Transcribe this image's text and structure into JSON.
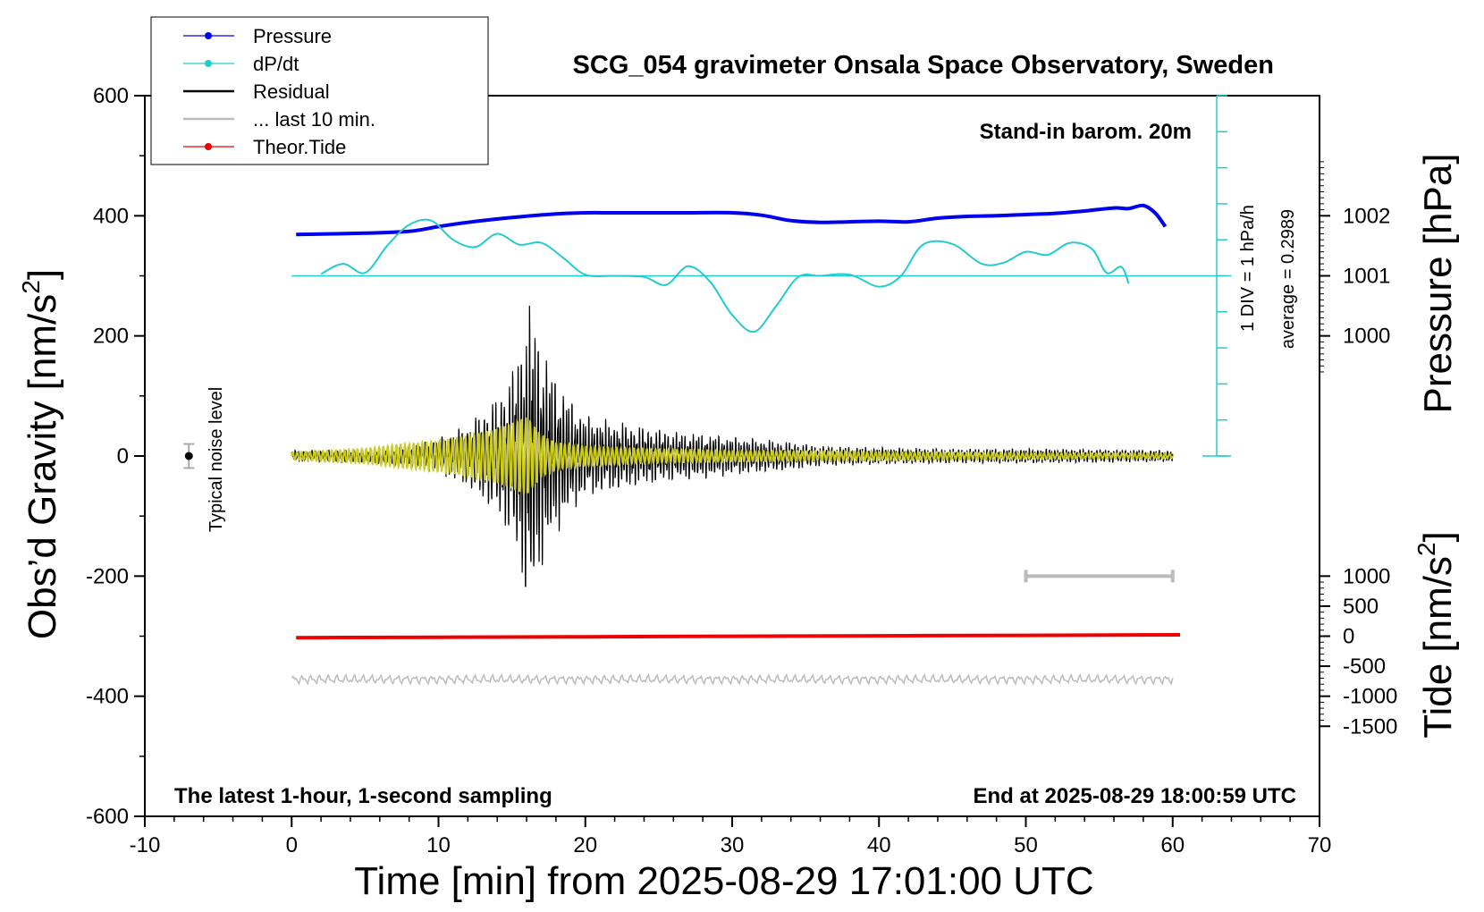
{
  "chart_data": {
    "type": "line",
    "title": "SCG_054 gravimeter Onsala Space Observatory, Sweden",
    "xlabel": "Time [min] from 2025-08-29 17:01:00 UTC",
    "ylabel_left": "Obs’d Gravity [nm/s",
    "ylabel_left_sup": "2",
    "ylabel_left_end": "]",
    "ylabel_right_pressure": "Pressure [hPa]",
    "ylabel_right_tide": "Tide [nm/s",
    "ylabel_right_tide_sup": "2",
    "ylabel_right_tide_end": "]",
    "xlim": [
      -10,
      70
    ],
    "ylim": [
      -600,
      600
    ],
    "x_ticks": [
      -10,
      0,
      10,
      20,
      30,
      40,
      50,
      60,
      70
    ],
    "x_tick_labels": [
      "-10",
      "0",
      "10",
      "20",
      "30",
      "40",
      "50",
      "60",
      "70"
    ],
    "y_ticks": [
      -600,
      -400,
      -200,
      0,
      200,
      400,
      600
    ],
    "y_tick_labels": [
      "-600",
      "-400",
      "-200",
      "0",
      "200",
      "400",
      "600"
    ],
    "pressure_ticks": [
      1000,
      1001,
      1002
    ],
    "pressure_tick_labels": [
      "1000",
      "1001",
      "1002"
    ],
    "tide_ticks": [
      -1500,
      -1000,
      -500,
      0,
      500,
      1000
    ],
    "tide_tick_labels": [
      "-1500",
      "-1000",
      "-500",
      "0",
      "500",
      "1000"
    ],
    "legend": [
      {
        "label": "Pressure",
        "color": "#0000ee",
        "marker": true
      },
      {
        "label": "dP/dt",
        "color": "#22cccc",
        "marker": true
      },
      {
        "label": "Residual",
        "color": "#000000",
        "marker": false
      },
      {
        "label": "... last 10 min.",
        "color": "#bbbbbb",
        "marker": false
      },
      {
        "label": "Theor.Tide",
        "color": "#ee0000",
        "marker": true
      }
    ],
    "annotations": {
      "barometer": "Stand-in barom. 20m",
      "div_scale": "1 DIV = 1 hPa/h",
      "average": "average = 0.2989",
      "noise": "Typical noise level",
      "sampling": "The latest 1-hour, 1-second sampling",
      "end_time": "End at 2025-08-29 18:00:59 UTC"
    },
    "series": [
      {
        "name": "Pressure",
        "color": "#0000ee",
        "x": [
          0.3,
          5,
          8,
          10,
          12,
          15,
          18,
          20,
          22,
          25,
          27,
          30,
          32,
          34,
          36,
          38,
          40,
          42,
          44,
          46,
          48,
          50,
          52,
          54,
          56,
          57,
          58,
          58.8,
          59.5
        ],
        "values": [
          369,
          371,
          374,
          382,
          389,
          397,
          403,
          405,
          405,
          405,
          405,
          405,
          401,
          392,
          389,
          390,
          391,
          390,
          396,
          399,
          400,
          402,
          404,
          408,
          413,
          412,
          417,
          405,
          382
        ]
      },
      {
        "name": "dP/dt",
        "color": "#22cccc",
        "x": [
          2,
          3.5,
          5,
          6.5,
          8,
          9.5,
          11,
          12.5,
          14,
          15.5,
          17,
          18.5,
          20,
          22,
          24,
          25.5,
          27,
          28.5,
          30,
          31.5,
          33,
          34.5,
          36,
          38,
          40,
          41.5,
          43,
          45,
          47,
          48.5,
          50,
          51.5,
          53,
          54.5,
          55.5,
          56.5,
          57
        ],
        "values": [
          303,
          320,
          305,
          350,
          385,
          392,
          360,
          348,
          370,
          352,
          355,
          330,
          302,
          300,
          298,
          285,
          316,
          290,
          235,
          207,
          250,
          298,
          300,
          302,
          282,
          300,
          352,
          353,
          320,
          322,
          340,
          335,
          355,
          345,
          305,
          315,
          287
        ]
      },
      {
        "name": "Theor.Tide",
        "color": "#ee0000",
        "x": [
          0.3,
          10,
          20,
          30,
          40,
          50,
          60.5
        ],
        "tide_values": [
          -25,
          -18,
          -10,
          -2,
          6,
          14,
          22
        ]
      }
    ],
    "residual_envelope": {
      "x": [
        0,
        5,
        8,
        10,
        12,
        13,
        14,
        15,
        15.5,
        16,
        16.3,
        17,
        18,
        19,
        20,
        22,
        24,
        26,
        28,
        30,
        32,
        34,
        36,
        40,
        45,
        50,
        55,
        60
      ],
      "amplitude": [
        10,
        12,
        18,
        32,
        55,
        80,
        105,
        150,
        200,
        260,
        280,
        200,
        140,
        100,
        72,
        62,
        52,
        44,
        40,
        34,
        30,
        25,
        18,
        15,
        13,
        13,
        12,
        10
      ]
    },
    "filtered_envelope": {
      "color": "#cccc22",
      "x": [
        0,
        5,
        7,
        10,
        12,
        14,
        15,
        16,
        17,
        18,
        20,
        24,
        30,
        35,
        40,
        50,
        60
      ],
      "amplitude": [
        6,
        12,
        18,
        25,
        34,
        45,
        55,
        65,
        35,
        22,
        16,
        12,
        9,
        8,
        7,
        5,
        4
      ]
    },
    "last_10_min_bar": {
      "x_start": 50,
      "x_end": 60,
      "y": -200,
      "color": "#bbbbbb"
    },
    "last_10_min_trace": {
      "color": "#bbbbbb",
      "x_start": 0,
      "x_end": 60,
      "center": -372,
      "amplitude": 8
    },
    "noise_level": {
      "x": -7,
      "y": 0,
      "half_range": 20
    },
    "dpdt_zero_line": {
      "y": 300,
      "x_start": 0,
      "x_end": 64
    },
    "dpdt_scale_axis": {
      "x": 63,
      "y_bottom": 0,
      "y_top": 600,
      "tick_step": 60
    }
  }
}
